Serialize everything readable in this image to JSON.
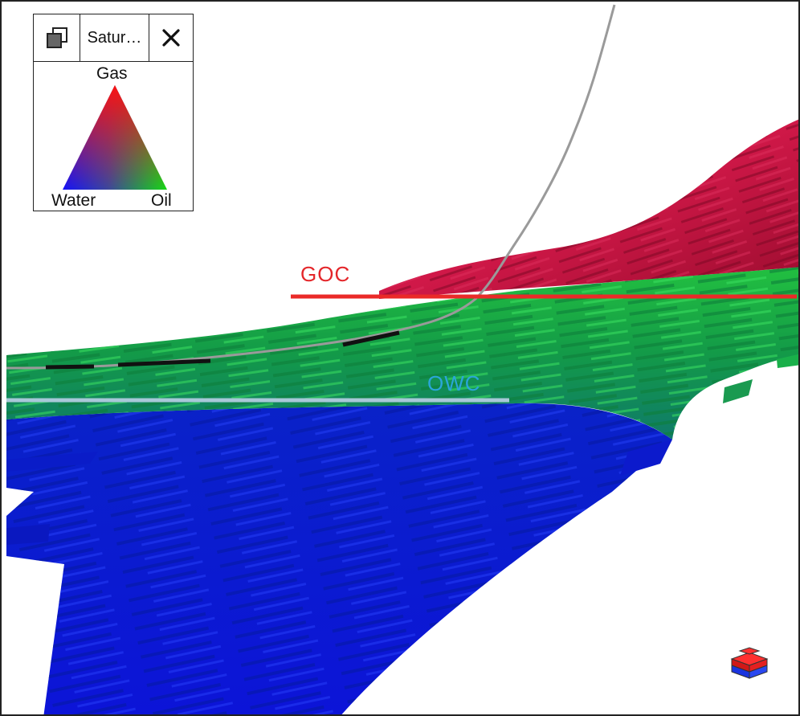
{
  "legend": {
    "title": "Satur…",
    "top_label": "Gas",
    "left_label": "Water",
    "right_label": "Oil",
    "corner_colors": {
      "gas": "#ff1010",
      "water": "#1010ff",
      "oil": "#10e010"
    },
    "detach_icon": "detach-window-icon",
    "close_icon": "close-icon"
  },
  "markers": {
    "goc_label": "GOC",
    "owc_label": "OWC",
    "goc_color": "#ea2a28",
    "owc_color": "#a8c8d8",
    "owc_text_color": "#2aa6d8"
  },
  "colors": {
    "gas_zone": "#c4123a",
    "oil_zone": "#1aa83c",
    "water_zone": "#0c1ad0",
    "well_trajectory": "#9a9a9a"
  },
  "nav_cube_icon": "orientation-cube-icon"
}
